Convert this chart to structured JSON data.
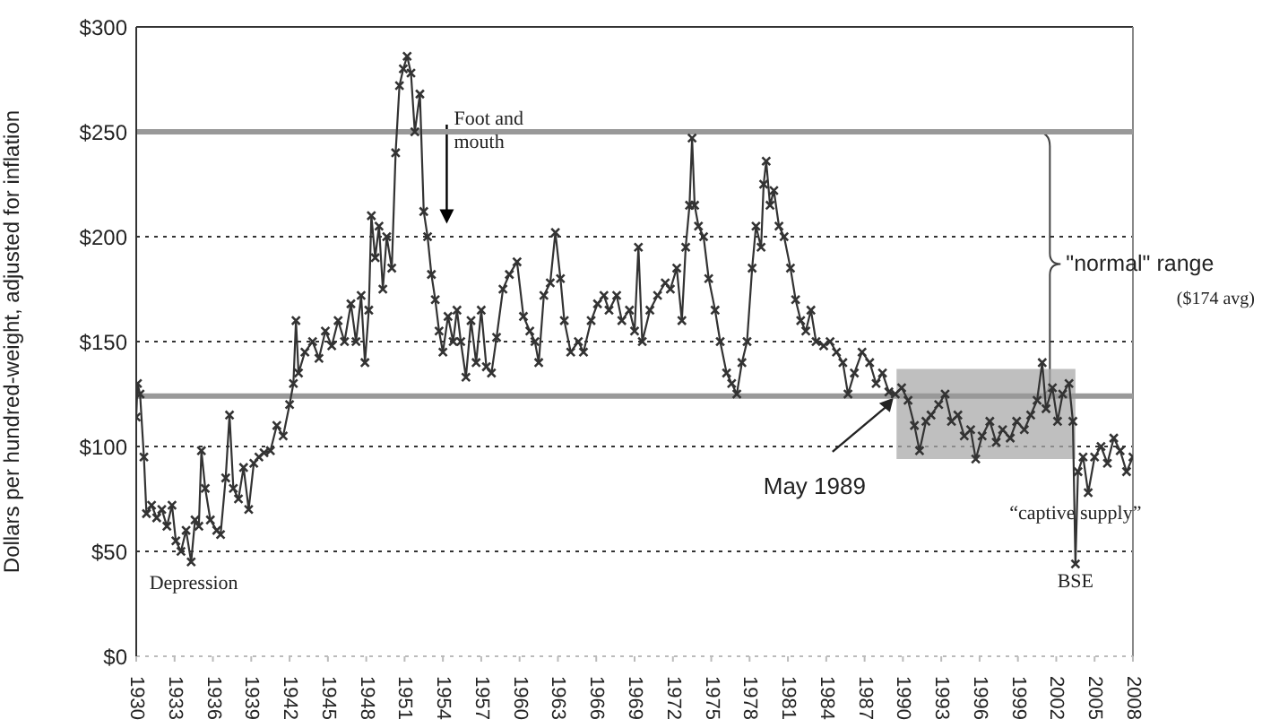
{
  "chart_data": {
    "type": "line",
    "ylabel": "Dollars per hundred-weight, adjusted for  inflation",
    "xlim": [
      1930,
      2008
    ],
    "xticks": [
      1930,
      1933,
      1936,
      1939,
      1942,
      1945,
      1948,
      1951,
      1954,
      1957,
      1960,
      1963,
      1966,
      1969,
      1972,
      1975,
      1978,
      1981,
      1984,
      1987,
      1990,
      1993,
      1996,
      1999,
      2002,
      2005,
      2008
    ],
    "ylim": [
      0,
      300
    ],
    "yticks": [
      {
        "value": 0,
        "label": "$0"
      },
      {
        "value": 50,
        "label": "$50"
      },
      {
        "value": 100,
        "label": "$100"
      },
      {
        "value": 150,
        "label": "$150"
      },
      {
        "value": 200,
        "label": "$200"
      },
      {
        "value": 250,
        "label": "$250"
      },
      {
        "value": 300,
        "label": "$300"
      }
    ],
    "grid": "y",
    "marker": "cross",
    "line_style": "solid",
    "series": [
      {
        "color": "#333333",
        "x": [
          1930.0,
          1930.1,
          1930.3,
          1930.6,
          1930.8,
          1931.2,
          1931.6,
          1932.0,
          1932.4,
          1932.8,
          1933.1,
          1933.5,
          1933.9,
          1934.3,
          1934.6,
          1934.9,
          1935.1,
          1935.4,
          1935.8,
          1936.3,
          1936.6,
          1937.0,
          1937.3,
          1937.6,
          1938.0,
          1938.4,
          1938.8,
          1939.2,
          1939.6,
          1940.0,
          1940.5,
          1941.0,
          1941.5,
          1942.0,
          1942.3,
          1942.5,
          1942.7,
          1943.2,
          1943.8,
          1944.3,
          1944.8,
          1945.3,
          1945.8,
          1946.3,
          1946.8,
          1947.2,
          1947.6,
          1947.9,
          1948.2,
          1948.4,
          1948.7,
          1949.0,
          1949.3,
          1949.6,
          1950.0,
          1950.3,
          1950.6,
          1950.9,
          1951.2,
          1951.5,
          1951.8,
          1952.2,
          1952.5,
          1952.8,
          1953.1,
          1953.4,
          1953.7,
          1954.0,
          1954.4,
          1954.8,
          1955.1,
          1955.4,
          1955.8,
          1956.2,
          1956.6,
          1957.0,
          1957.4,
          1957.8,
          1958.2,
          1958.7,
          1959.2,
          1959.8,
          1960.3,
          1960.8,
          1961.2,
          1961.5,
          1961.9,
          1962.4,
          1962.8,
          1963.2,
          1963.5,
          1964.0,
          1964.6,
          1965.0,
          1965.6,
          1966.1,
          1966.6,
          1967.0,
          1967.6,
          1968.0,
          1968.6,
          1969.0,
          1969.3,
          1969.6,
          1970.2,
          1970.8,
          1971.4,
          1971.8,
          1972.3,
          1972.7,
          1973.0,
          1973.3,
          1973.5,
          1973.7,
          1974.0,
          1974.4,
          1974.8,
          1975.3,
          1975.7,
          1976.2,
          1976.6,
          1977.0,
          1977.4,
          1977.8,
          1978.2,
          1978.5,
          1978.9,
          1979.1,
          1979.3,
          1979.6,
          1979.9,
          1980.3,
          1980.7,
          1981.2,
          1981.6,
          1982.0,
          1982.4,
          1982.8,
          1983.2,
          1983.8,
          1984.3,
          1984.8,
          1985.3,
          1985.7,
          1986.2,
          1986.8,
          1987.4,
          1987.9,
          1988.4,
          1988.9,
          1989.4,
          1989.9,
          1990.4,
          1990.9,
          1991.3,
          1991.8,
          1992.2,
          1992.8,
          1993.3,
          1993.8,
          1994.3,
          1994.8,
          1995.3,
          1995.7,
          1996.2,
          1996.8,
          1997.3,
          1997.8,
          1998.4,
          1998.9,
          1999.5,
          2000.0,
          2000.5,
          2000.9,
          2001.2,
          2001.7,
          2002.1,
          2002.5,
          2003.0,
          2003.3,
          2003.5,
          2003.7,
          2004.1,
          2004.5,
          2005.0,
          2005.5,
          2006.0,
          2006.5,
          2007.0,
          2007.5,
          2008.0
        ],
        "values": [
          114,
          130,
          125,
          95,
          68,
          72,
          66,
          70,
          62,
          72,
          55,
          50,
          60,
          45,
          65,
          62,
          98,
          80,
          65,
          60,
          58,
          85,
          115,
          80,
          75,
          90,
          70,
          92,
          95,
          97,
          98,
          110,
          105,
          120,
          130,
          160,
          135,
          145,
          150,
          142,
          155,
          148,
          160,
          150,
          168,
          150,
          172,
          140,
          165,
          210,
          190,
          205,
          175,
          200,
          185,
          240,
          272,
          280,
          286,
          278,
          250,
          268,
          212,
          200,
          182,
          170,
          155,
          145,
          162,
          150,
          165,
          150,
          133,
          160,
          140,
          165,
          138,
          135,
          152,
          175,
          182,
          188,
          162,
          155,
          150,
          140,
          172,
          178,
          202,
          180,
          160,
          145,
          150,
          145,
          160,
          168,
          172,
          165,
          172,
          160,
          165,
          155,
          195,
          150,
          165,
          172,
          178,
          175,
          185,
          160,
          195,
          215,
          247,
          215,
          205,
          200,
          180,
          165,
          150,
          135,
          130,
          125,
          140,
          150,
          185,
          205,
          195,
          225,
          236,
          215,
          222,
          205,
          200,
          185,
          170,
          160,
          155,
          165,
          150,
          148,
          150,
          145,
          140,
          125,
          135,
          145,
          140,
          130,
          135,
          126,
          125,
          128,
          122,
          110,
          98,
          112,
          115,
          120,
          125,
          112,
          115,
          105,
          108,
          94,
          105,
          112,
          102,
          108,
          104,
          112,
          108,
          115,
          122,
          140,
          118,
          128,
          112,
          125,
          130,
          112,
          44,
          88,
          95,
          78,
          95,
          100,
          92,
          104,
          98,
          88,
          95
        ]
      }
    ],
    "ref_lines": [
      {
        "axis": "y",
        "value": 250,
        "color": "#999999"
      },
      {
        "axis": "y",
        "value": 124,
        "color": "#999999"
      }
    ],
    "bands": [
      {
        "axis": "x",
        "from": 1989.5,
        "to": 2003.5,
        "color": "#aaaaaa"
      }
    ],
    "annotations": [
      "Foot and mouth",
      "Depression",
      {
        "text": "May 1989",
        "x": 1989.4,
        "y": 124
      },
      "\"normal\" range",
      "($174 avg)",
      "“captive supply”",
      {
        "text": "BSE",
        "x": 2003.5,
        "y": 44
      }
    ]
  }
}
